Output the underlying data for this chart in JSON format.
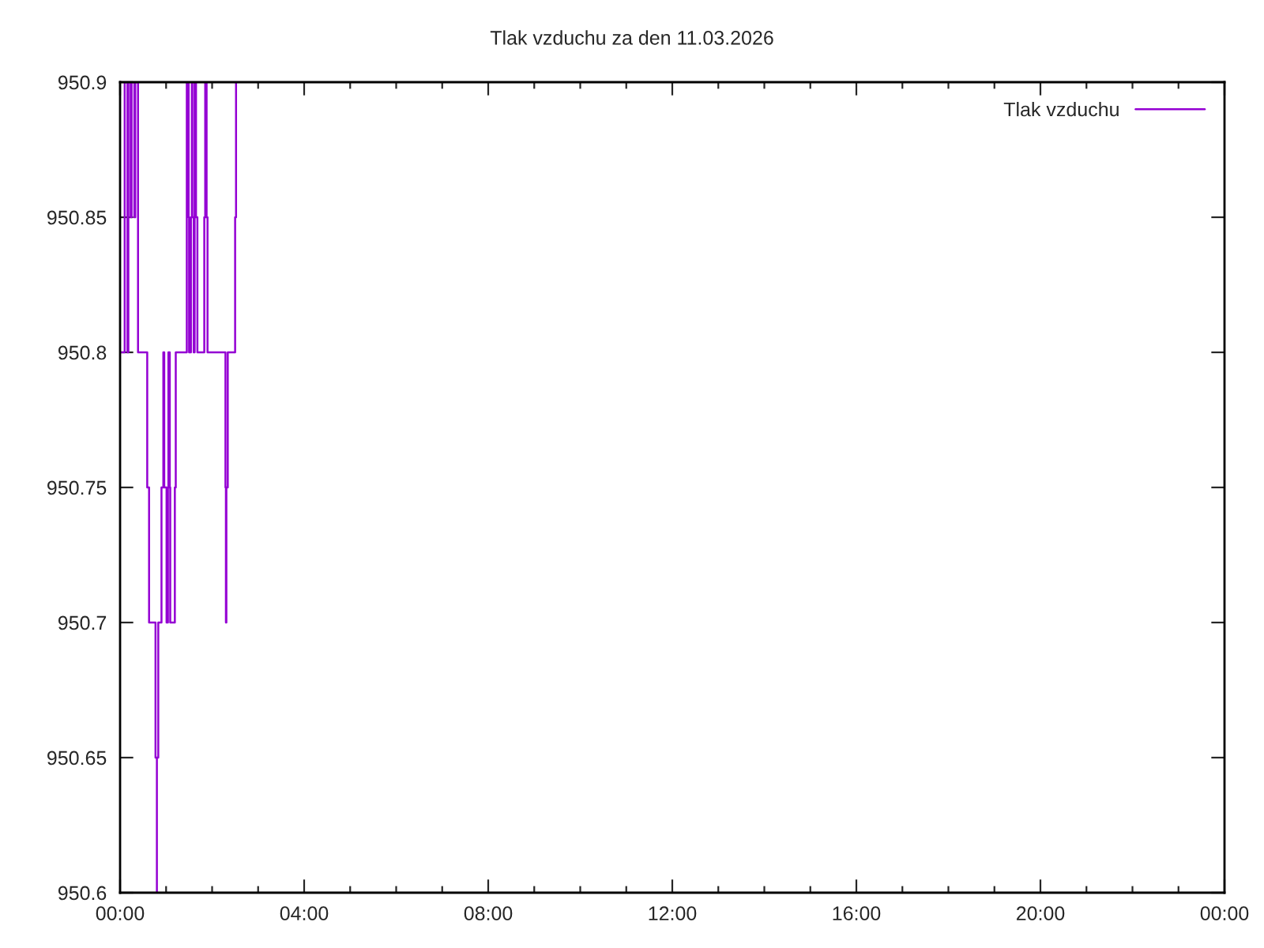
{
  "chart_data": {
    "type": "step",
    "title": "Tlak vzduchu za den 11.03.2026",
    "series": [
      {
        "name": "Tlak vzduchu",
        "color": "#9400d3",
        "x": [
          0,
          0.1,
          0.16,
          0.18,
          0.23,
          0.25,
          0.31,
          0.33,
          0.39,
          0.59,
          0.63,
          0.77,
          0.8,
          0.8,
          0.83,
          0.9,
          0.94,
          0.96,
          1.01,
          1.04,
          1.05,
          1.08,
          1.09,
          1.19,
          1.21,
          1.45,
          1.49,
          1.5,
          1.54,
          1.56,
          1.57,
          1.6,
          1.62,
          1.65,
          1.68,
          1.83,
          1.85,
          1.88,
          1.9,
          2.29,
          2.3,
          2.31,
          2.34,
          2.5,
          2.52
        ],
        "values": [
          950.8,
          950.9,
          950.8,
          950.9,
          950.85,
          950.9,
          950.85,
          950.9,
          950.8,
          950.75,
          950.7,
          950.65,
          950.6,
          950.65,
          950.7,
          950.75,
          950.8,
          950.75,
          950.7,
          950.75,
          950.8,
          950.75,
          950.7,
          950.75,
          950.8,
          950.9,
          950.85,
          950.8,
          950.85,
          950.9,
          950.85,
          950.8,
          950.9,
          950.85,
          950.8,
          950.85,
          950.9,
          950.85,
          950.8,
          950.75,
          950.7,
          950.75,
          950.8,
          950.85,
          950.9
        ]
      }
    ],
    "xlim": [
      0,
      24
    ],
    "xticks": [
      {
        "value": 0,
        "label": "00:00"
      },
      {
        "value": 1,
        "label": null
      },
      {
        "value": 2,
        "label": null
      },
      {
        "value": 3,
        "label": null
      },
      {
        "value": 4,
        "label": "04:00"
      },
      {
        "value": 5,
        "label": null
      },
      {
        "value": 6,
        "label": null
      },
      {
        "value": 7,
        "label": null
      },
      {
        "value": 8,
        "label": "08:00"
      },
      {
        "value": 9,
        "label": null
      },
      {
        "value": 10,
        "label": null
      },
      {
        "value": 11,
        "label": null
      },
      {
        "value": 12,
        "label": "12:00"
      },
      {
        "value": 13,
        "label": null
      },
      {
        "value": 14,
        "label": null
      },
      {
        "value": 15,
        "label": null
      },
      {
        "value": 16,
        "label": "16:00"
      },
      {
        "value": 17,
        "label": null
      },
      {
        "value": 18,
        "label": null
      },
      {
        "value": 19,
        "label": null
      },
      {
        "value": 20,
        "label": "20:00"
      },
      {
        "value": 21,
        "label": null
      },
      {
        "value": 22,
        "label": null
      },
      {
        "value": 23,
        "label": null
      },
      {
        "value": 24,
        "label": "00:00"
      }
    ],
    "ylim": [
      950.6,
      950.9
    ],
    "yticks": [
      950.6,
      950.65,
      950.7,
      950.75,
      950.8,
      950.85,
      950.9
    ],
    "grid": false,
    "legend": "top right",
    "marker": "none",
    "line_style": "solid"
  }
}
